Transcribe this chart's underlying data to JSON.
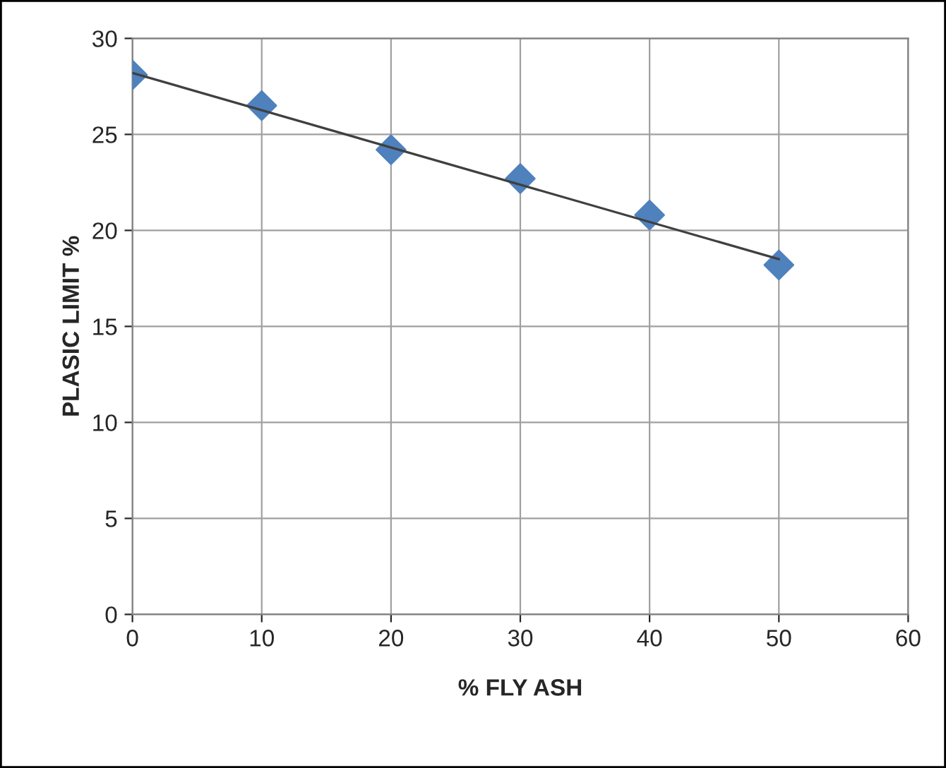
{
  "chart_data": {
    "type": "scatter",
    "xlabel": "% FLY ASH",
    "ylabel": "PLASIC LIMIT %",
    "x": [
      0,
      10,
      20,
      30,
      40,
      50
    ],
    "series": [
      {
        "color": "#4f81bd",
        "marker": "diamond",
        "values": [
          28.1,
          26.5,
          24.2,
          22.7,
          20.8,
          18.2
        ]
      },
      {
        "type": "line",
        "color": "#404040",
        "marker": "none",
        "x": [
          0,
          50
        ],
        "values": [
          28.2,
          18.5
        ]
      }
    ],
    "xlim": [
      0,
      60
    ],
    "xticks": [
      0,
      10,
      20,
      30,
      40,
      50,
      60
    ],
    "ylim": [
      0,
      30
    ],
    "yticks": [
      0,
      5,
      10,
      15,
      20,
      25,
      30
    ],
    "grid": true,
    "legend": false
  }
}
